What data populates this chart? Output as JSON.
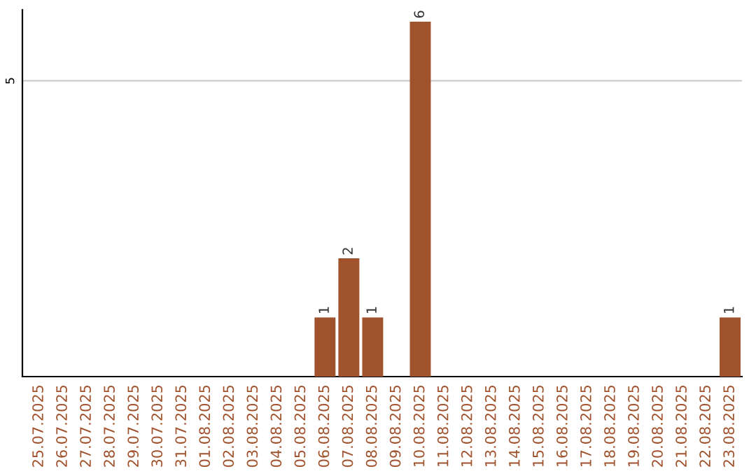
{
  "chart_data": {
    "type": "bar",
    "categories": [
      "25.07.2025",
      "26.07.2025",
      "27.07.2025",
      "28.07.2025",
      "29.07.2025",
      "30.07.2025",
      "31.07.2025",
      "01.08.2025",
      "02.08.2025",
      "03.08.2025",
      "04.08.2025",
      "05.08.2025",
      "06.08.2025",
      "07.08.2025",
      "08.08.2025",
      "09.08.2025",
      "10.08.2025",
      "11.08.2025",
      "12.08.2025",
      "13.08.2025",
      "14.08.2025",
      "15.08.2025",
      "16.08.2025",
      "17.08.2025",
      "18.08.2025",
      "19.08.2025",
      "20.08.2025",
      "21.08.2025",
      "22.08.2025",
      "23.08.2025"
    ],
    "values": [
      null,
      null,
      null,
      null,
      null,
      null,
      null,
      null,
      null,
      null,
      null,
      null,
      1,
      2,
      1,
      null,
      6,
      null,
      null,
      null,
      null,
      null,
      null,
      null,
      null,
      null,
      null,
      null,
      null,
      1
    ],
    "value_labels": [
      null,
      null,
      null,
      null,
      null,
      null,
      null,
      null,
      null,
      null,
      null,
      null,
      "1",
      "2",
      "1",
      null,
      "6",
      null,
      null,
      null,
      null,
      null,
      null,
      null,
      null,
      null,
      null,
      null,
      null,
      "1"
    ],
    "color": "#a0522d",
    "ylim": [
      0,
      6.2
    ],
    "yticks": [
      5
    ],
    "grid": "y",
    "legend": false
  }
}
